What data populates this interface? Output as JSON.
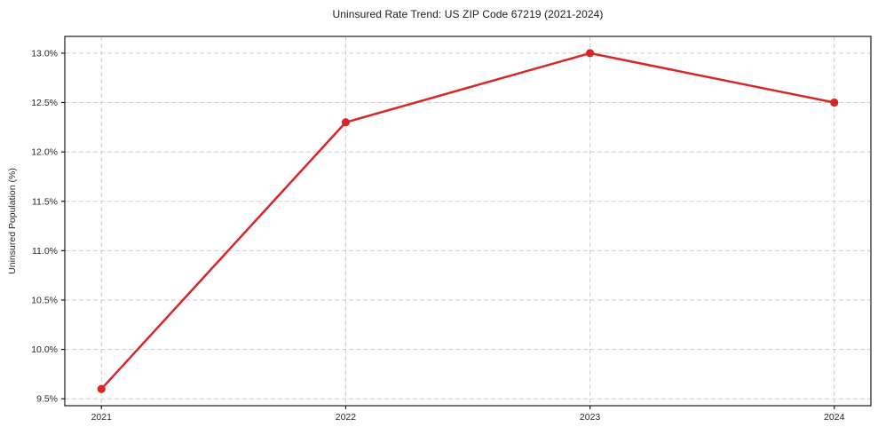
{
  "chart_data": {
    "type": "line",
    "title": "Uninsured Rate Trend: US ZIP Code 67219 (2021-2024)",
    "xlabel": "",
    "ylabel": "Uninsured Population (%)",
    "x": [
      2021,
      2022,
      2023,
      2024
    ],
    "values": [
      9.6,
      12.3,
      13.0,
      12.5
    ],
    "xticks": {
      "values": [
        2021,
        2022,
        2023,
        2024
      ],
      "labels": [
        "2021",
        "2022",
        "2023",
        "2024"
      ]
    },
    "yticks": {
      "values": [
        9.5,
        10.0,
        10.5,
        11.0,
        11.5,
        12.0,
        12.5,
        13.0
      ],
      "labels": [
        "9.5%",
        "10.0%",
        "10.5%",
        "11.0%",
        "11.5%",
        "12.0%",
        "12.5%",
        "13.0%"
      ]
    },
    "xlim": [
      2020.85,
      2024.15
    ],
    "ylim": [
      9.43,
      13.17
    ],
    "grid": true,
    "grid_style": "dashed",
    "legend": false,
    "colors": {
      "line": "#d62728",
      "marker": "#d62728",
      "grid": "#cccccc",
      "spine": "#1a1a1a",
      "text": "#262626",
      "background": "#ffffff"
    }
  }
}
